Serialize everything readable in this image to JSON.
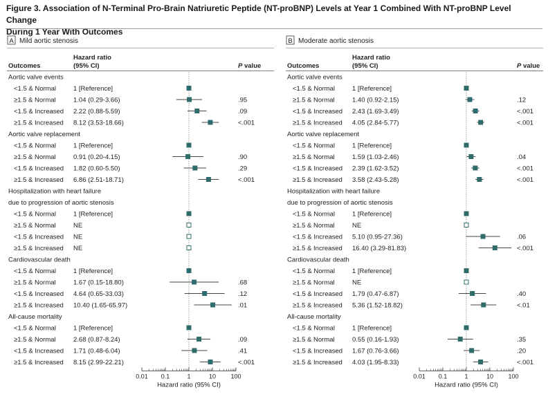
{
  "figure": {
    "title_line1": "Figure 3. Association of N-Terminal Pro-Brain Natriuretic Peptide (NT-proBNP) Levels at Year 1 Combined With NT-proBNP Level Change",
    "title_line2": "During 1 Year With Outcomes"
  },
  "colors": {
    "marker": "#2f6b6b",
    "line": "#444444",
    "text": "#222222",
    "rule": "#9a9a9a"
  },
  "chart_data": [
    {
      "type": "forest",
      "panel_letter": "A",
      "panel_label": "Mild aortic stenosis",
      "column_headers": {
        "outcomes": "Outcomes",
        "hr_line1": "Hazard ratio",
        "hr_line2": "(95% CI)",
        "p": "P value"
      },
      "xlabel": "Hazard ratio (95% CI)",
      "xscale": "log",
      "xlim": [
        0.01,
        100
      ],
      "xticks": [
        "0.01",
        "0.1",
        "1",
        "10",
        "100"
      ],
      "reference_line": 1,
      "groups": [
        {
          "title": [
            "Aortic valve events"
          ],
          "rows": [
            {
              "label": "<1.5 & Normal",
              "hr_text": "1 [Reference]",
              "p": "",
              "hr": 1,
              "lo": null,
              "hi": null,
              "reference": true
            },
            {
              "label": "≥1.5 & Normal",
              "hr_text": "1.04 (0.29-3.66)",
              "p": ".95",
              "hr": 1.04,
              "lo": 0.29,
              "hi": 3.66
            },
            {
              "label": "<1.5 & Increased",
              "hr_text": "2.22 (0.88-5.59)",
              "p": ".09",
              "hr": 2.22,
              "lo": 0.88,
              "hi": 5.59
            },
            {
              "label": "≥1.5 & Increased",
              "hr_text": "8.12 (3.53-18.66)",
              "p": "<.001",
              "hr": 8.12,
              "lo": 3.53,
              "hi": 18.66
            }
          ]
        },
        {
          "title": [
            "Aortic valve replacement"
          ],
          "rows": [
            {
              "label": "<1.5 & Normal",
              "hr_text": "1 [Reference]",
              "p": "",
              "hr": 1,
              "lo": null,
              "hi": null,
              "reference": true
            },
            {
              "label": "≥1.5 & Normal",
              "hr_text": "0.91 (0.20-4.15)",
              "p": ".90",
              "hr": 0.91,
              "lo": 0.2,
              "hi": 4.15
            },
            {
              "label": "<1.5 & Increased",
              "hr_text": "1.82 (0.60-5.50)",
              "p": ".29",
              "hr": 1.82,
              "lo": 0.6,
              "hi": 5.5
            },
            {
              "label": "≥1.5 & Increased",
              "hr_text": "6.86 (2.51-18.71)",
              "p": "<.001",
              "hr": 6.86,
              "lo": 2.51,
              "hi": 18.71
            }
          ]
        },
        {
          "title": [
            "Hospitalization with heart failure",
            "due to progression of aortic stenosis"
          ],
          "rows": [
            {
              "label": "<1.5 & Normal",
              "hr_text": "1 [Reference]",
              "p": "",
              "hr": 1,
              "lo": null,
              "hi": null,
              "reference": true
            },
            {
              "label": "≥1.5 & Normal",
              "hr_text": "NE",
              "p": "",
              "hr": 1,
              "lo": null,
              "hi": null,
              "ne": true
            },
            {
              "label": "<1.5 & Increased",
              "hr_text": "NE",
              "p": "",
              "hr": 1,
              "lo": null,
              "hi": null,
              "ne": true
            },
            {
              "label": "≥1.5 & Increased",
              "hr_text": "NE",
              "p": "",
              "hr": 1,
              "lo": null,
              "hi": null,
              "ne": true
            }
          ]
        },
        {
          "title": [
            "Cardiovascular death"
          ],
          "rows": [
            {
              "label": "<1.5 & Normal",
              "hr_text": "1 [Reference]",
              "p": "",
              "hr": 1,
              "lo": null,
              "hi": null,
              "reference": true
            },
            {
              "label": "≥1.5 & Normal",
              "hr_text": "1.67 (0.15-18.80)",
              "p": ".68",
              "hr": 1.67,
              "lo": 0.15,
              "hi": 18.8
            },
            {
              "label": "<1.5 & Increased",
              "hr_text": "4.64 (0.65-33.03)",
              "p": ".12",
              "hr": 4.64,
              "lo": 0.65,
              "hi": 33.03
            },
            {
              "label": "≥1.5 & Increased",
              "hr_text": "10.40 (1.65-65.97)",
              "p": ".01",
              "hr": 10.4,
              "lo": 1.65,
              "hi": 65.97
            }
          ]
        },
        {
          "title": [
            "All-cause mortality"
          ],
          "rows": [
            {
              "label": "<1.5 & Normal",
              "hr_text": "1 [Reference]",
              "p": "",
              "hr": 1,
              "lo": null,
              "hi": null,
              "reference": true
            },
            {
              "label": "≥1.5 & Normal",
              "hr_text": "2.68 (0.87-8.24)",
              "p": ".09",
              "hr": 2.68,
              "lo": 0.87,
              "hi": 8.24
            },
            {
              "label": "<1.5 & Increased",
              "hr_text": "1.71 (0.48-6.04)",
              "p": ".41",
              "hr": 1.71,
              "lo": 0.48,
              "hi": 6.04
            },
            {
              "label": "≥1.5 & Increased",
              "hr_text": "8.15 (2.99-22.21)",
              "p": "<.001",
              "hr": 8.15,
              "lo": 2.99,
              "hi": 22.21
            }
          ]
        }
      ]
    },
    {
      "type": "forest",
      "panel_letter": "B",
      "panel_label": "Moderate aortic stenosis",
      "column_headers": {
        "outcomes": "Outcomes",
        "hr_line1": "Hazard ratio",
        "hr_line2": "(95% CI)",
        "p": "P value"
      },
      "xlabel": "Hazard ratio (95% CI)",
      "xscale": "log",
      "xlim": [
        0.01,
        100
      ],
      "xticks": [
        "0.01",
        "0.1",
        "1",
        "10",
        "100"
      ],
      "reference_line": 1,
      "groups": [
        {
          "title": [
            "Aortic valve events"
          ],
          "rows": [
            {
              "label": "<1.5 & Normal",
              "hr_text": "1 [Reference]",
              "p": "",
              "hr": 1,
              "lo": null,
              "hi": null,
              "reference": true
            },
            {
              "label": "≥1.5 & Normal",
              "hr_text": "1.40 (0.92-2.15)",
              "p": ".12",
              "hr": 1.4,
              "lo": 0.92,
              "hi": 2.15
            },
            {
              "label": "<1.5 & Increased",
              "hr_text": "2.43 (1.69-3.49)",
              "p": "<.001",
              "hr": 2.43,
              "lo": 1.69,
              "hi": 3.49
            },
            {
              "label": "≥1.5 & Increased",
              "hr_text": "4.05 (2.84-5.77)",
              "p": "<.001",
              "hr": 4.05,
              "lo": 2.84,
              "hi": 5.77
            }
          ]
        },
        {
          "title": [
            "Aortic valve replacement"
          ],
          "rows": [
            {
              "label": "<1.5 & Normal",
              "hr_text": "1 [Reference]",
              "p": "",
              "hr": 1,
              "lo": null,
              "hi": null,
              "reference": true
            },
            {
              "label": "≥1.5 & Normal",
              "hr_text": "1.59 (1.03-2.46)",
              "p": ".04",
              "hr": 1.59,
              "lo": 1.03,
              "hi": 2.46
            },
            {
              "label": "<1.5 & Increased",
              "hr_text": "2.39 (1.62-3.52)",
              "p": "<.001",
              "hr": 2.39,
              "lo": 1.62,
              "hi": 3.52
            },
            {
              "label": "≥1.5 & Increased",
              "hr_text": "3.58 (2.43-5.28)",
              "p": "<.001",
              "hr": 3.58,
              "lo": 2.43,
              "hi": 5.28
            }
          ]
        },
        {
          "title": [
            "Hospitalization with heart failure",
            "due to progression of aortic stenosis"
          ],
          "rows": [
            {
              "label": "<1.5 & Normal",
              "hr_text": "1 [Reference]",
              "p": "",
              "hr": 1,
              "lo": null,
              "hi": null,
              "reference": true
            },
            {
              "label": "≥1.5 & Normal",
              "hr_text": "NE",
              "p": "",
              "hr": 1,
              "lo": null,
              "hi": null,
              "ne": true
            },
            {
              "label": "<1.5 & Increased",
              "hr_text": "5.10 (0.95-27.36)",
              "p": ".06",
              "hr": 5.1,
              "lo": 0.95,
              "hi": 27.36
            },
            {
              "label": "≥1.5 & Increased",
              "hr_text": "16.40 (3.29-81.83)",
              "p": "<.001",
              "hr": 16.4,
              "lo": 3.29,
              "hi": 81.83
            }
          ]
        },
        {
          "title": [
            "Cardiovascular death"
          ],
          "rows": [
            {
              "label": "<1.5 & Normal",
              "hr_text": "1 [Reference]",
              "p": "",
              "hr": 1,
              "lo": null,
              "hi": null,
              "reference": true
            },
            {
              "label": "≥1.5 & Normal",
              "hr_text": "NE",
              "p": "",
              "hr": 1,
              "lo": null,
              "hi": null,
              "ne": true
            },
            {
              "label": "<1.5 & Increased",
              "hr_text": "1.79 (0.47-6.87)",
              "p": ".40",
              "hr": 1.79,
              "lo": 0.47,
              "hi": 6.87
            },
            {
              "label": "≥1.5 & Increased",
              "hr_text": "5.36 (1.52-18.82)",
              "p": "<.01",
              "hr": 5.36,
              "lo": 1.52,
              "hi": 18.82
            }
          ]
        },
        {
          "title": [
            "All-cause mortality"
          ],
          "rows": [
            {
              "label": "<1.5 & Normal",
              "hr_text": "1 [Reference]",
              "p": "",
              "hr": 1,
              "lo": null,
              "hi": null,
              "reference": true
            },
            {
              "label": "≥1.5 & Normal",
              "hr_text": "0.55 (0.16-1.93)",
              "p": ".35",
              "hr": 0.55,
              "lo": 0.16,
              "hi": 1.93
            },
            {
              "label": "<1.5 & Increased",
              "hr_text": "1.67 (0.76-3.66)",
              "p": ".20",
              "hr": 1.67,
              "lo": 0.76,
              "hi": 3.66
            },
            {
              "label": "≥1.5 & Increased",
              "hr_text": "4.03 (1.95-8.33)",
              "p": "<.001",
              "hr": 4.03,
              "lo": 1.95,
              "hi": 8.33
            }
          ]
        }
      ]
    }
  ]
}
